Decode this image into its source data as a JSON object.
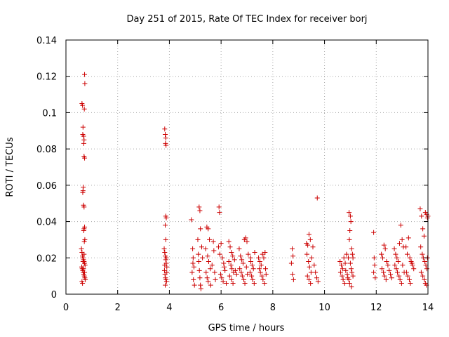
{
  "chart_data": {
    "type": "scatter",
    "title": "Day 251 of 2015, Rate Of TEC Index for receiver borj",
    "xlabel": "GPS time / hours",
    "ylabel": "ROTI / TECUs",
    "xlim": [
      0,
      14
    ],
    "ylim": [
      0,
      0.14
    ],
    "xticks": [
      0,
      2,
      4,
      6,
      8,
      10,
      12,
      14
    ],
    "yticks": [
      0,
      0.02,
      0.04,
      0.06,
      0.08,
      0.1,
      0.12,
      0.14
    ],
    "xtick_labels": [
      "0",
      "2",
      "4",
      "6",
      "8",
      "10",
      "12",
      "14"
    ],
    "ytick_labels": [
      "0",
      "0.02",
      "0.04",
      "0.06",
      "0.08",
      "0.1",
      "0.12",
      "0.14"
    ],
    "grid": true,
    "marker": "+",
    "marker_color": "#cc0000",
    "series": [
      {
        "name": "ROTI",
        "points": [
          [
            0.62,
            0.105
          ],
          [
            0.64,
            0.104
          ],
          [
            0.66,
            0.092
          ],
          [
            0.65,
            0.088
          ],
          [
            0.68,
            0.087
          ],
          [
            0.7,
            0.085
          ],
          [
            0.69,
            0.083
          ],
          [
            0.72,
            0.121
          ],
          [
            0.73,
            0.116
          ],
          [
            0.71,
            0.102
          ],
          [
            0.7,
            0.076
          ],
          [
            0.72,
            0.075
          ],
          [
            0.67,
            0.059
          ],
          [
            0.66,
            0.057
          ],
          [
            0.65,
            0.056
          ],
          [
            0.68,
            0.049
          ],
          [
            0.7,
            0.048
          ],
          [
            0.72,
            0.037
          ],
          [
            0.7,
            0.036
          ],
          [
            0.69,
            0.035
          ],
          [
            0.73,
            0.03
          ],
          [
            0.71,
            0.029
          ],
          [
            0.6,
            0.025
          ],
          [
            0.62,
            0.023
          ],
          [
            0.64,
            0.021
          ],
          [
            0.66,
            0.02
          ],
          [
            0.68,
            0.019
          ],
          [
            0.7,
            0.018
          ],
          [
            0.72,
            0.017
          ],
          [
            0.74,
            0.016
          ],
          [
            0.61,
            0.015
          ],
          [
            0.63,
            0.014
          ],
          [
            0.65,
            0.013
          ],
          [
            0.67,
            0.012
          ],
          [
            0.69,
            0.011
          ],
          [
            0.71,
            0.01
          ],
          [
            0.73,
            0.009
          ],
          [
            0.75,
            0.008
          ],
          [
            0.62,
            0.007
          ],
          [
            0.64,
            0.006
          ],
          [
            0.66,
            0.018
          ],
          [
            0.68,
            0.014
          ],
          [
            0.7,
            0.022
          ],
          [
            0.72,
            0.012
          ],
          [
            3.82,
            0.091
          ],
          [
            3.84,
            0.088
          ],
          [
            3.86,
            0.086
          ],
          [
            3.85,
            0.083
          ],
          [
            3.87,
            0.082
          ],
          [
            3.86,
            0.043
          ],
          [
            3.88,
            0.042
          ],
          [
            3.84,
            0.038
          ],
          [
            3.8,
            0.025
          ],
          [
            3.82,
            0.023
          ],
          [
            3.84,
            0.021
          ],
          [
            3.86,
            0.019
          ],
          [
            3.88,
            0.017
          ],
          [
            3.9,
            0.015
          ],
          [
            3.81,
            0.013
          ],
          [
            3.83,
            0.011
          ],
          [
            3.85,
            0.009
          ],
          [
            3.87,
            0.008
          ],
          [
            3.89,
            0.007
          ],
          [
            3.9,
            0.012
          ],
          [
            3.82,
            0.016
          ],
          [
            3.86,
            0.03
          ],
          [
            3.84,
            0.005
          ],
          [
            3.88,
            0.02
          ],
          [
            4.85,
            0.041
          ],
          [
            4.9,
            0.025
          ],
          [
            4.92,
            0.02
          ],
          [
            4.95,
            0.015
          ],
          [
            4.88,
            0.012
          ],
          [
            4.93,
            0.008
          ],
          [
            4.97,
            0.005
          ],
          [
            4.91,
            0.017
          ],
          [
            5.15,
            0.048
          ],
          [
            5.18,
            0.046
          ],
          [
            5.2,
            0.036
          ],
          [
            5.1,
            0.03
          ],
          [
            5.12,
            0.022
          ],
          [
            5.14,
            0.018
          ],
          [
            5.16,
            0.013
          ],
          [
            5.18,
            0.009
          ],
          [
            5.2,
            0.005
          ],
          [
            5.22,
            0.003
          ],
          [
            5.25,
            0.026
          ],
          [
            5.28,
            0.02
          ],
          [
            5.45,
            0.037
          ],
          [
            5.5,
            0.036
          ],
          [
            5.55,
            0.03
          ],
          [
            5.4,
            0.025
          ],
          [
            5.48,
            0.021
          ],
          [
            5.52,
            0.018
          ],
          [
            5.58,
            0.014
          ],
          [
            5.42,
            0.012
          ],
          [
            5.46,
            0.009
          ],
          [
            5.5,
            0.007
          ],
          [
            5.6,
            0.005
          ],
          [
            5.65,
            0.016
          ],
          [
            5.7,
            0.029
          ],
          [
            5.72,
            0.024
          ],
          [
            5.75,
            0.012
          ],
          [
            5.78,
            0.008
          ],
          [
            5.92,
            0.048
          ],
          [
            5.94,
            0.045
          ],
          [
            5.9,
            0.026
          ],
          [
            5.95,
            0.022
          ],
          [
            6.0,
            0.028
          ],
          [
            6.05,
            0.02
          ],
          [
            6.1,
            0.017
          ],
          [
            6.15,
            0.013
          ],
          [
            5.98,
            0.011
          ],
          [
            6.02,
            0.009
          ],
          [
            6.08,
            0.007
          ],
          [
            6.12,
            0.015
          ],
          [
            6.2,
            0.006
          ],
          [
            6.3,
            0.029
          ],
          [
            6.35,
            0.026
          ],
          [
            6.4,
            0.023
          ],
          [
            6.45,
            0.021
          ],
          [
            6.3,
            0.018
          ],
          [
            6.38,
            0.016
          ],
          [
            6.42,
            0.014
          ],
          [
            6.48,
            0.012
          ],
          [
            6.33,
            0.01
          ],
          [
            6.4,
            0.008
          ],
          [
            6.46,
            0.006
          ],
          [
            6.52,
            0.019
          ],
          [
            6.55,
            0.013
          ],
          [
            6.6,
            0.011
          ],
          [
            6.7,
            0.025
          ],
          [
            6.75,
            0.021
          ],
          [
            6.8,
            0.019
          ],
          [
            6.85,
            0.017
          ],
          [
            6.9,
            0.03
          ],
          [
            6.95,
            0.031
          ],
          [
            7.0,
            0.029
          ],
          [
            6.72,
            0.014
          ],
          [
            6.78,
            0.012
          ],
          [
            6.82,
            0.01
          ],
          [
            6.88,
            0.008
          ],
          [
            6.92,
            0.006
          ],
          [
            6.98,
            0.015
          ],
          [
            7.02,
            0.011
          ],
          [
            7.05,
            0.022
          ],
          [
            7.15,
            0.018
          ],
          [
            7.2,
            0.016
          ],
          [
            7.25,
            0.014
          ],
          [
            7.3,
            0.023
          ],
          [
            7.12,
            0.012
          ],
          [
            7.18,
            0.01
          ],
          [
            7.22,
            0.008
          ],
          [
            7.28,
            0.006
          ],
          [
            7.14,
            0.02
          ],
          [
            7.45,
            0.02
          ],
          [
            7.5,
            0.018
          ],
          [
            7.55,
            0.016
          ],
          [
            7.6,
            0.022
          ],
          [
            7.65,
            0.02
          ],
          [
            7.7,
            0.023
          ],
          [
            7.48,
            0.014
          ],
          [
            7.52,
            0.012
          ],
          [
            7.58,
            0.01
          ],
          [
            7.62,
            0.008
          ],
          [
            7.68,
            0.006
          ],
          [
            7.72,
            0.014
          ],
          [
            7.74,
            0.011
          ],
          [
            8.75,
            0.025
          ],
          [
            8.78,
            0.021
          ],
          [
            8.72,
            0.017
          ],
          [
            8.76,
            0.011
          ],
          [
            8.8,
            0.008
          ],
          [
            9.3,
            0.028
          ],
          [
            9.35,
            0.027
          ],
          [
            9.4,
            0.033
          ],
          [
            9.45,
            0.03
          ],
          [
            9.32,
            0.022
          ],
          [
            9.38,
            0.018
          ],
          [
            9.42,
            0.015
          ],
          [
            9.48,
            0.012
          ],
          [
            9.34,
            0.01
          ],
          [
            9.4,
            0.008
          ],
          [
            9.46,
            0.006
          ],
          [
            9.5,
            0.02
          ],
          [
            9.55,
            0.026
          ],
          [
            9.6,
            0.016
          ],
          [
            9.65,
            0.012
          ],
          [
            9.7,
            0.009
          ],
          [
            9.75,
            0.007
          ],
          [
            9.72,
            0.053
          ],
          [
            10.6,
            0.018
          ],
          [
            10.65,
            0.016
          ],
          [
            10.7,
            0.014
          ],
          [
            10.75,
            0.02
          ],
          [
            10.8,
            0.017
          ],
          [
            10.85,
            0.022
          ],
          [
            10.62,
            0.012
          ],
          [
            10.68,
            0.01
          ],
          [
            10.72,
            0.008
          ],
          [
            10.78,
            0.006
          ],
          [
            10.82,
            0.013
          ],
          [
            10.88,
            0.011
          ],
          [
            10.9,
            0.009
          ],
          [
            10.95,
            0.045
          ],
          [
            11.0,
            0.043
          ],
          [
            11.02,
            0.04
          ],
          [
            10.98,
            0.035
          ],
          [
            10.96,
            0.03
          ],
          [
            11.05,
            0.025
          ],
          [
            11.08,
            0.022
          ],
          [
            10.92,
            0.02
          ],
          [
            11.0,
            0.017
          ],
          [
            11.03,
            0.014
          ],
          [
            11.06,
            0.012
          ],
          [
            11.1,
            0.01
          ],
          [
            10.94,
            0.008
          ],
          [
            10.97,
            0.006
          ],
          [
            11.04,
            0.004
          ],
          [
            11.1,
            0.02
          ],
          [
            11.9,
            0.034
          ],
          [
            11.92,
            0.02
          ],
          [
            11.94,
            0.016
          ],
          [
            11.9,
            0.012
          ],
          [
            11.96,
            0.009
          ],
          [
            12.2,
            0.022
          ],
          [
            12.25,
            0.02
          ],
          [
            12.3,
            0.027
          ],
          [
            12.35,
            0.025
          ],
          [
            12.4,
            0.018
          ],
          [
            12.22,
            0.014
          ],
          [
            12.28,
            0.012
          ],
          [
            12.32,
            0.01
          ],
          [
            12.38,
            0.008
          ],
          [
            12.45,
            0.016
          ],
          [
            12.5,
            0.013
          ],
          [
            12.55,
            0.011
          ],
          [
            12.6,
            0.009
          ],
          [
            12.7,
            0.025
          ],
          [
            12.75,
            0.022
          ],
          [
            12.8,
            0.02
          ],
          [
            12.85,
            0.018
          ],
          [
            12.9,
            0.028
          ],
          [
            12.95,
            0.038
          ],
          [
            13.0,
            0.03
          ],
          [
            13.05,
            0.026
          ],
          [
            12.72,
            0.016
          ],
          [
            12.78,
            0.014
          ],
          [
            12.82,
            0.012
          ],
          [
            12.88,
            0.01
          ],
          [
            12.92,
            0.008
          ],
          [
            12.98,
            0.006
          ],
          [
            13.02,
            0.016
          ],
          [
            13.08,
            0.012
          ],
          [
            13.15,
            0.026
          ],
          [
            13.2,
            0.022
          ],
          [
            13.25,
            0.031
          ],
          [
            13.3,
            0.02
          ],
          [
            13.35,
            0.018
          ],
          [
            13.4,
            0.016
          ],
          [
            13.45,
            0.014
          ],
          [
            13.17,
            0.012
          ],
          [
            13.22,
            0.01
          ],
          [
            13.28,
            0.008
          ],
          [
            13.32,
            0.006
          ],
          [
            13.38,
            0.017
          ],
          [
            13.7,
            0.047
          ],
          [
            13.75,
            0.043
          ],
          [
            13.8,
            0.036
          ],
          [
            13.85,
            0.032
          ],
          [
            13.9,
            0.045
          ],
          [
            13.95,
            0.044
          ],
          [
            13.98,
            0.042
          ],
          [
            14.0,
            0.043
          ],
          [
            13.72,
            0.026
          ],
          [
            13.78,
            0.022
          ],
          [
            13.82,
            0.02
          ],
          [
            13.88,
            0.018
          ],
          [
            13.92,
            0.016
          ],
          [
            13.96,
            0.014
          ],
          [
            13.74,
            0.012
          ],
          [
            13.8,
            0.01
          ],
          [
            13.86,
            0.008
          ],
          [
            13.9,
            0.006
          ],
          [
            13.94,
            0.005
          ],
          [
            13.98,
            0.02
          ]
        ]
      }
    ]
  }
}
